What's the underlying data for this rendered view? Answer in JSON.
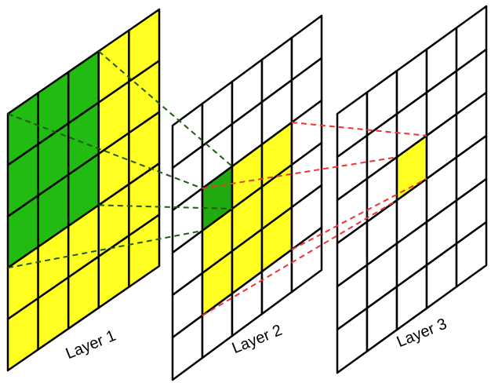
{
  "layers": [
    {
      "label": "Layer 1"
    },
    {
      "label": "Layer 2"
    },
    {
      "label": "Layer 3"
    }
  ]
}
